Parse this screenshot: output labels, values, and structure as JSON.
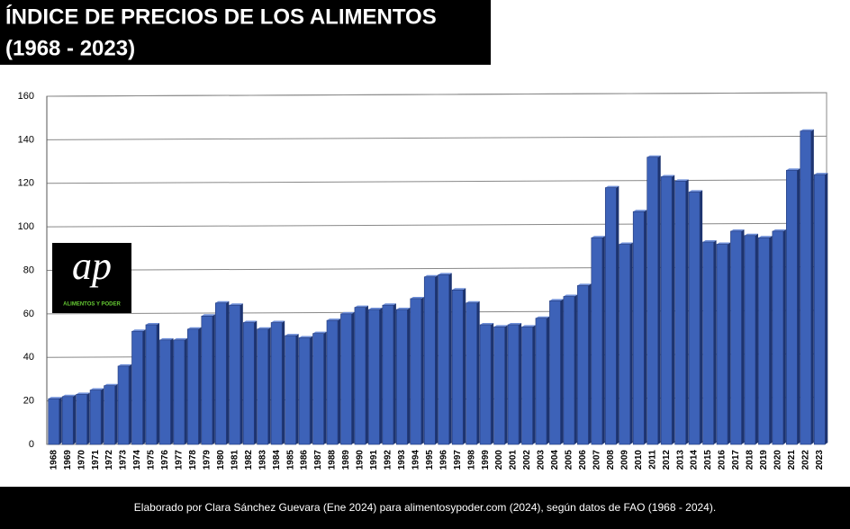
{
  "chart_data": {
    "type": "bar",
    "title": "ÍNDICE DE PRECIOS DE LOS ALIMENTOS",
    "subtitle": "(1968 - 2023)",
    "categories": [
      "1968",
      "1969",
      "1970",
      "1971",
      "1972",
      "1973",
      "1974",
      "1975",
      "1976",
      "1977",
      "1978",
      "1979",
      "1980",
      "1981",
      "1982",
      "1983",
      "1984",
      "1985",
      "1986",
      "1987",
      "1988",
      "1989",
      "1990",
      "1991",
      "1992",
      "1993",
      "1994",
      "1995",
      "1996",
      "1997",
      "1998",
      "1999",
      "2000",
      "2001",
      "2002",
      "2003",
      "2004",
      "2005",
      "2006",
      "2007",
      "2008",
      "2009",
      "2010",
      "2011",
      "2012",
      "2013",
      "2014",
      "2015",
      "2016",
      "2017",
      "2018",
      "2019",
      "2020",
      "2021",
      "2022",
      "2023"
    ],
    "values": [
      21,
      22,
      23,
      25,
      27,
      36,
      52,
      55,
      48,
      48,
      53,
      59,
      65,
      64,
      56,
      53,
      56,
      50,
      49,
      51,
      57,
      60,
      63,
      62,
      64,
      62,
      67,
      77,
      78,
      71,
      65,
      55,
      54,
      55,
      54,
      58,
      66,
      68,
      73,
      95,
      118,
      92,
      107,
      132,
      123,
      121,
      116,
      93,
      92,
      98,
      96,
      95,
      98,
      126,
      144,
      124
    ],
    "color": "#3d62b8",
    "ylim": [
      0,
      160
    ],
    "yticks": [
      0,
      20,
      40,
      60,
      80,
      100,
      120,
      140,
      160
    ],
    "grid": true
  },
  "logo": {
    "mark": "ap",
    "name": "ALIMENTOS Y PODER"
  },
  "footer": "Elaborado por Clara Sánchez Guevara (Ene 2024)  para alimentosypoder.com (2024), según datos de FAO (1968 - 2024)."
}
